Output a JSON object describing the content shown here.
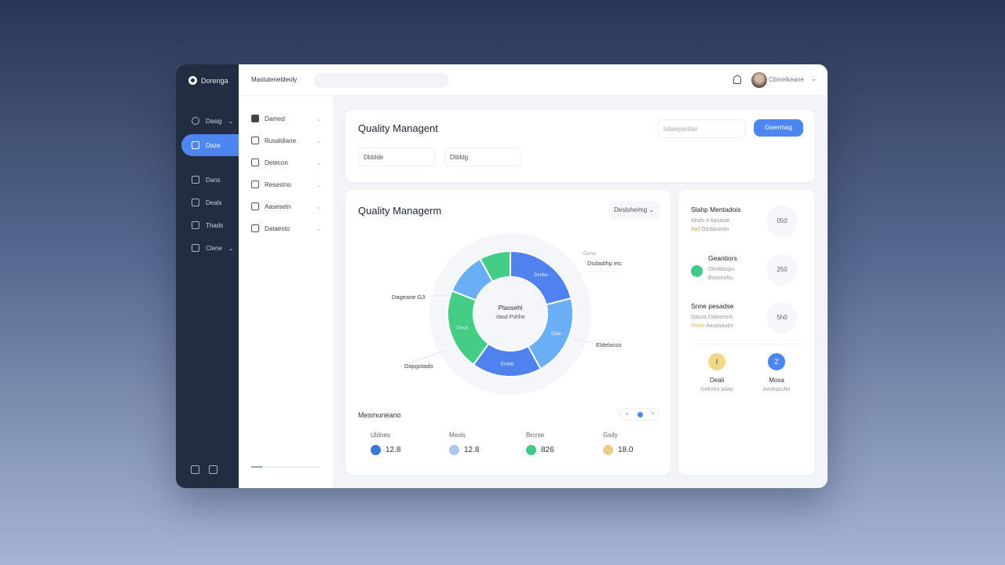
{
  "app": {
    "name": "Dorenga"
  },
  "sidebar": {
    "items": [
      {
        "label": "Dasig",
        "icon": "home-icon",
        "chevron": true
      },
      {
        "label": "Daze",
        "icon": "inbox-icon",
        "active": true
      },
      {
        "label": "Dans",
        "icon": "camera-icon"
      },
      {
        "label": "Deals",
        "icon": "image-icon"
      },
      {
        "label": "Thads",
        "icon": "document-icon"
      },
      {
        "label": "Clene",
        "icon": "chart-icon",
        "chevron": true
      }
    ],
    "bottom_icons": [
      "layout-icon",
      "export-icon"
    ]
  },
  "header": {
    "breadcrumb": "Mastuteneldeoly",
    "search_placeholder": "",
    "user_name": "Cbmelkeane"
  },
  "subnav": {
    "items": [
      {
        "label": "Damed",
        "icon": "lock-icon"
      },
      {
        "label": "Rusaldiane",
        "icon": "calendar-icon"
      },
      {
        "label": "Detecon",
        "icon": "list-icon"
      },
      {
        "label": "Resestno",
        "icon": "settings-icon"
      },
      {
        "label": "Aasesetn",
        "icon": "book-icon"
      },
      {
        "label": "Dataesto",
        "icon": "folder-icon"
      }
    ]
  },
  "top_card": {
    "title": "Quality Managent",
    "filter1": "Dbblde",
    "filter2": "Dtbldg",
    "search_placeholder": "tsilaepontiar",
    "button": "Gwermag"
  },
  "chart_card": {
    "title": "Quality Managerm",
    "dropdown": "Deslohelmg",
    "center_title": "Plaosehl",
    "center_sub": "Vasd Pshhe",
    "metrics_title": "Mesmuneano"
  },
  "chart_data": {
    "type": "pie",
    "variant": "donut",
    "values": [
      21,
      21,
      18,
      21,
      11,
      8
    ],
    "segment_labels": [
      "Dsnba",
      "Dlab",
      "Dsasb",
      "Dsca",
      "",
      ""
    ],
    "colors": [
      "#4f82ef",
      "#6aaef5",
      "#4f82ef",
      "#45cc85",
      "#6aaef5",
      "#45cc85"
    ],
    "callouts": [
      "Dsdadihp ets",
      "Eldelasso",
      "Dapgotado",
      "Dageane G3"
    ],
    "callout_top": "Dsmo"
  },
  "stats": [
    {
      "label": "Uldnes",
      "value": "12.8",
      "color": "#3b78d8"
    },
    {
      "label": "Mesls",
      "value": "12.8",
      "color": "#a9c7ee"
    },
    {
      "label": "Brcrse",
      "value": "826",
      "color": "#3ecb88"
    },
    {
      "label": "Gsdy",
      "value": "18.0",
      "color": "#e8cc88"
    }
  ],
  "right_card": {
    "items": [
      {
        "title": "Slahp Mentadois",
        "line1": "Idnds e 6asaste",
        "tag": "Axil",
        "line2": "Osolaseian",
        "value": "050"
      },
      {
        "title": "Geantiors",
        "line1": "Dteddaspu",
        "line2": "Bsaseohu",
        "value": "250"
      },
      {
        "title": "Snne pesadse",
        "line1": "Dassa Dalaseost",
        "tag": "Meae",
        "line2": "Aasasaubs",
        "value": "5h0"
      }
    ],
    "badges": [
      {
        "label": "Deali",
        "sub": "Isekseo pdao",
        "glyph": "I",
        "color": "#f2d98a"
      },
      {
        "label": "Mosa",
        "sub": "Aeshqsulte",
        "glyph": "Z",
        "color": "#4d86f0"
      }
    ]
  }
}
